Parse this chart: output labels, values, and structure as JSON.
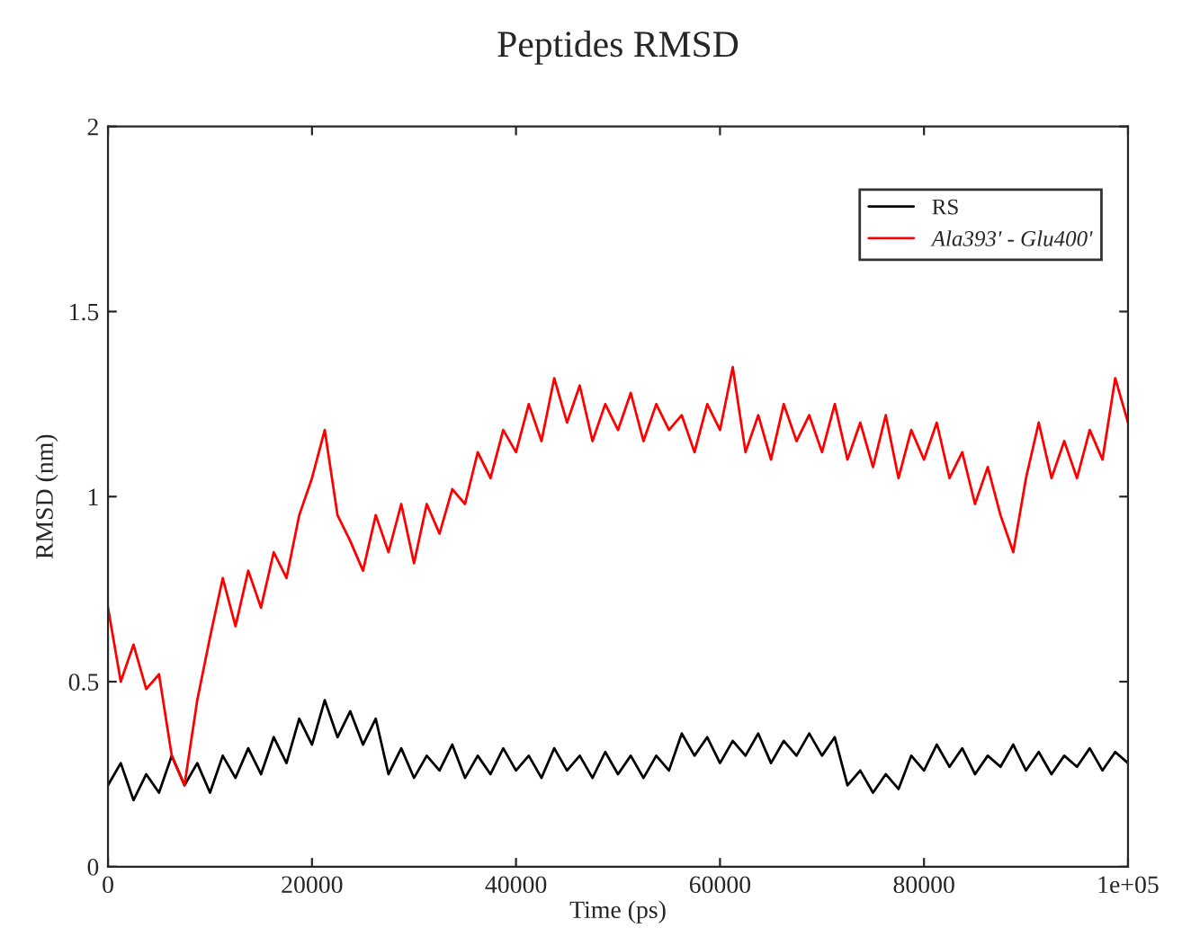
{
  "chart_data": {
    "type": "line",
    "title": "Peptides RMSD",
    "xlabel": "Time (ps)",
    "ylabel": "RMSD (nm)",
    "x": [
      0,
      1250,
      2500,
      3750,
      5000,
      6250,
      7500,
      8750,
      10000,
      11250,
      12500,
      13750,
      15000,
      16250,
      17500,
      18750,
      20000,
      21250,
      22500,
      23750,
      25000,
      26250,
      27500,
      28750,
      30000,
      31250,
      32500,
      33750,
      35000,
      36250,
      37500,
      38750,
      40000,
      41250,
      42500,
      43750,
      45000,
      46250,
      47500,
      48750,
      50000,
      51250,
      52500,
      53750,
      55000,
      56250,
      57500,
      58750,
      60000,
      61250,
      62500,
      63750,
      65000,
      66250,
      67500,
      68750,
      70000,
      71250,
      72500,
      73750,
      75000,
      76250,
      77500,
      78750,
      80000,
      81250,
      82500,
      83750,
      85000,
      86250,
      87500,
      88750,
      90000,
      91250,
      92500,
      93750,
      95000,
      96250,
      97500,
      98750,
      100000
    ],
    "series": [
      {
        "name": "RS",
        "color": "#000000",
        "values": [
          0.22,
          0.28,
          0.18,
          0.25,
          0.2,
          0.3,
          0.22,
          0.28,
          0.2,
          0.3,
          0.24,
          0.32,
          0.25,
          0.35,
          0.28,
          0.4,
          0.33,
          0.45,
          0.35,
          0.42,
          0.33,
          0.4,
          0.25,
          0.32,
          0.24,
          0.3,
          0.26,
          0.33,
          0.24,
          0.3,
          0.25,
          0.32,
          0.26,
          0.3,
          0.24,
          0.32,
          0.26,
          0.3,
          0.24,
          0.31,
          0.25,
          0.3,
          0.24,
          0.3,
          0.26,
          0.36,
          0.3,
          0.35,
          0.28,
          0.34,
          0.3,
          0.36,
          0.28,
          0.34,
          0.3,
          0.36,
          0.3,
          0.35,
          0.22,
          0.26,
          0.2,
          0.25,
          0.21,
          0.3,
          0.26,
          0.33,
          0.27,
          0.32,
          0.25,
          0.3,
          0.27,
          0.33,
          0.26,
          0.31,
          0.25,
          0.3,
          0.27,
          0.32,
          0.26,
          0.31,
          0.28
        ]
      },
      {
        "name": "Ala393' - Glu400'",
        "color": "#ff0000",
        "values": [
          0.7,
          0.5,
          0.6,
          0.48,
          0.52,
          0.3,
          0.22,
          0.45,
          0.62,
          0.78,
          0.65,
          0.8,
          0.7,
          0.85,
          0.78,
          0.95,
          1.05,
          1.18,
          0.95,
          0.88,
          0.8,
          0.95,
          0.85,
          0.98,
          0.82,
          0.98,
          0.9,
          1.02,
          0.98,
          1.12,
          1.05,
          1.18,
          1.12,
          1.25,
          1.15,
          1.32,
          1.2,
          1.3,
          1.15,
          1.25,
          1.18,
          1.28,
          1.15,
          1.25,
          1.18,
          1.22,
          1.12,
          1.25,
          1.18,
          1.35,
          1.12,
          1.22,
          1.1,
          1.25,
          1.15,
          1.22,
          1.12,
          1.25,
          1.1,
          1.2,
          1.08,
          1.22,
          1.05,
          1.18,
          1.1,
          1.2,
          1.05,
          1.12,
          0.98,
          1.08,
          0.95,
          0.85,
          1.05,
          1.2,
          1.05,
          1.15,
          1.05,
          1.18,
          1.1,
          1.32,
          1.2
        ]
      }
    ],
    "xlim": [
      0,
      100000
    ],
    "xticks": [
      0,
      20000,
      40000,
      60000,
      80000,
      {
        "value": 100000,
        "label": "1e+05"
      }
    ],
    "ylim": [
      0,
      2
    ],
    "yticks": [
      0,
      0.5,
      1,
      1.5,
      2
    ],
    "legend": "top right",
    "grid": false,
    "marker": "none",
    "line_style": "solid"
  }
}
